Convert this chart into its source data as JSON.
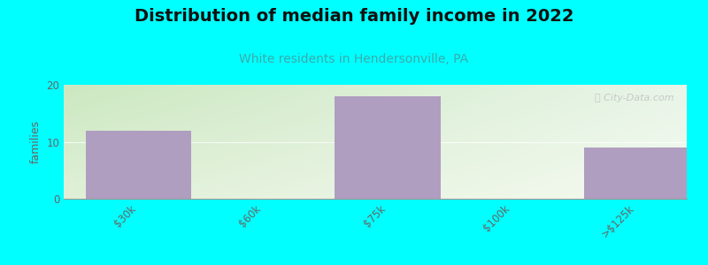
{
  "title": "Distribution of median family income in 2022",
  "subtitle": "White residents in Hendersonville, PA",
  "categories": [
    "$30k",
    "$60k",
    "$75k",
    "$100k",
    ">$125k"
  ],
  "values": [
    12,
    0,
    18,
    0,
    9
  ],
  "bar_color": "#b09ec0",
  "bar_width": 0.85,
  "ylabel": "families",
  "ylim": [
    0,
    20
  ],
  "yticks": [
    0,
    10,
    20
  ],
  "background_color": "#00ffff",
  "grad_color_topleft": "#cce8c0",
  "grad_color_bottomright": "#f8faf5",
  "title_color": "#111111",
  "subtitle_color": "#3aacac",
  "tick_color": "#666666",
  "title_fontsize": 14,
  "subtitle_fontsize": 10,
  "ylabel_fontsize": 9,
  "watermark": "City-Data.com",
  "watermark_color": "#bbbbbb"
}
